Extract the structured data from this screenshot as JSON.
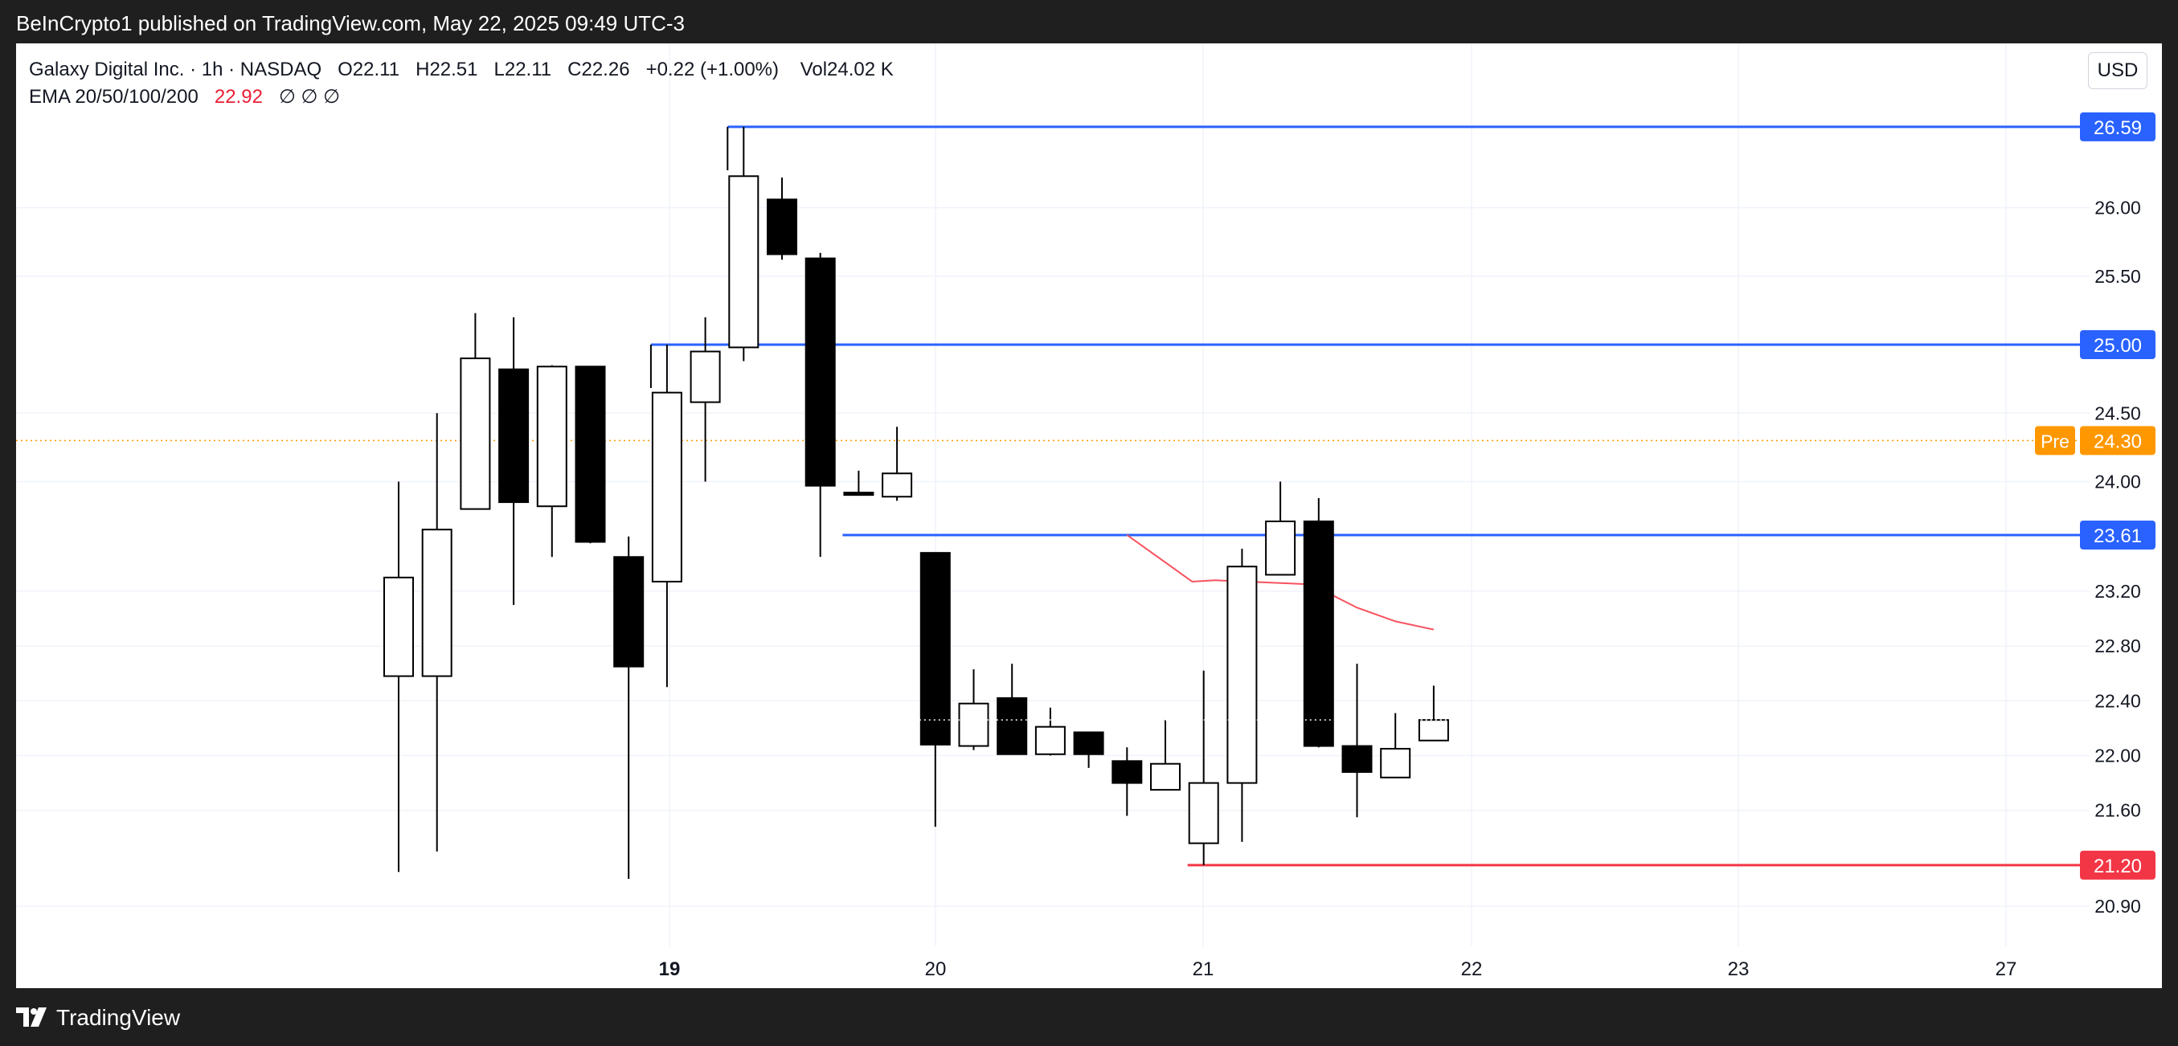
{
  "header": {
    "published": "BeInCrypto1 published on TradingView.com, May 22, 2025 09:49 UTC-3"
  },
  "legend": {
    "symbol_line": "Galaxy Digital Inc. · 1h · NASDAQ",
    "open": "O22.11",
    "high": "H22.51",
    "low": "L22.11",
    "close": "C22.26",
    "change": "+0.22 (+1.00%)",
    "volume": "Vol24.02 K",
    "ema_label": "EMA 20/50/100/200",
    "ema_value": "22.92",
    "ema_empty": "∅ ∅ ∅"
  },
  "currency": "USD",
  "footer": {
    "brand": "TradingView"
  },
  "colors": {
    "level_line": "#2962ff",
    "support_line": "#f23645",
    "pre_market": "#ff9800",
    "ema": "#f7525f",
    "up_candle": "#ffffff",
    "down_candle": "#000000"
  },
  "chart_data": {
    "type": "candlestick",
    "x_tick_labels": [
      "19",
      "20",
      "21",
      "22",
      "23",
      "27"
    ],
    "y_tick_labels": [
      "26.00",
      "25.50",
      "24.50",
      "24.00",
      "23.20",
      "22.80",
      "22.40",
      "22.00",
      "21.60",
      "20.90"
    ],
    "candles": [
      {
        "o": 22.58,
        "h": 24.0,
        "l": 21.15,
        "c": 23.3
      },
      {
        "o": 22.58,
        "h": 24.5,
        "l": 21.3,
        "c": 23.65
      },
      {
        "o": 23.8,
        "h": 25.23,
        "l": 23.8,
        "c": 24.9
      },
      {
        "o": 24.82,
        "h": 25.2,
        "l": 23.1,
        "c": 23.85
      },
      {
        "o": 23.82,
        "h": 24.85,
        "l": 23.45,
        "c": 24.84
      },
      {
        "o": 24.84,
        "h": 24.84,
        "l": 23.55,
        "c": 23.56
      },
      {
        "o": 23.45,
        "h": 23.6,
        "l": 21.1,
        "c": 22.65
      },
      {
        "o": 23.27,
        "h": 25.0,
        "l": 22.5,
        "c": 24.65
      },
      {
        "o": 24.58,
        "h": 25.2,
        "l": 24.0,
        "c": 24.95
      },
      {
        "o": 24.98,
        "h": 26.59,
        "l": 24.88,
        "c": 26.23
      },
      {
        "o": 26.06,
        "h": 26.22,
        "l": 25.62,
        "c": 25.66
      },
      {
        "o": 25.63,
        "h": 25.67,
        "l": 23.45,
        "c": 23.97
      },
      {
        "o": 23.92,
        "h": 24.08,
        "l": 23.92,
        "c": 23.91
      },
      {
        "o": 23.89,
        "h": 24.4,
        "l": 23.86,
        "c": 24.06
      },
      {
        "o": 23.48,
        "h": 23.48,
        "l": 21.48,
        "c": 22.08
      },
      {
        "o": 22.07,
        "h": 22.63,
        "l": 22.04,
        "c": 22.38
      },
      {
        "o": 22.42,
        "h": 22.67,
        "l": 22.01,
        "c": 22.01
      },
      {
        "o": 22.01,
        "h": 22.35,
        "l": 22.0,
        "c": 22.21
      },
      {
        "o": 22.17,
        "h": 22.17,
        "l": 21.91,
        "c": 22.01
      },
      {
        "o": 21.96,
        "h": 22.06,
        "l": 21.56,
        "c": 21.8
      },
      {
        "o": 21.75,
        "h": 22.26,
        "l": 21.75,
        "c": 21.94
      },
      {
        "o": 21.36,
        "h": 22.62,
        "l": 21.2,
        "c": 21.8
      },
      {
        "o": 21.8,
        "h": 23.51,
        "l": 21.37,
        "c": 23.38
      },
      {
        "o": 23.32,
        "h": 24.0,
        "l": 23.32,
        "c": 23.71
      },
      {
        "o": 23.71,
        "h": 23.88,
        "l": 22.06,
        "c": 22.07
      },
      {
        "o": 22.07,
        "h": 22.67,
        "l": 21.55,
        "c": 21.88
      },
      {
        "o": 21.84,
        "h": 22.31,
        "l": 21.84,
        "c": 22.05
      },
      {
        "o": 22.11,
        "h": 22.51,
        "l": 22.11,
        "c": 22.26
      }
    ],
    "ema": [
      {
        "i": 19.0,
        "v": 23.61
      },
      {
        "i": 20.7,
        "v": 23.27
      },
      {
        "i": 21.3,
        "v": 23.28
      },
      {
        "i": 23.8,
        "v": 23.25
      },
      {
        "i": 25.0,
        "v": 23.08
      },
      {
        "i": 26.0,
        "v": 22.98
      },
      {
        "i": 27.0,
        "v": 22.92
      }
    ],
    "horizontal_levels": [
      {
        "label": "26.59",
        "value": 26.59,
        "start": 9.0,
        "kind": "resistance"
      },
      {
        "label": "25.00",
        "value": 25.0,
        "start": 7.0,
        "kind": "resistance"
      },
      {
        "label": "23.61",
        "value": 23.61,
        "start": 12.0,
        "kind": "resistance"
      },
      {
        "label": "21.20",
        "value": 21.2,
        "start": 21.0,
        "kind": "support"
      }
    ],
    "pre_market": {
      "tag": "Pre",
      "label": "24.30",
      "value": 24.3
    },
    "last_price": 22.26,
    "grid": true,
    "legend_position": "top-left"
  }
}
